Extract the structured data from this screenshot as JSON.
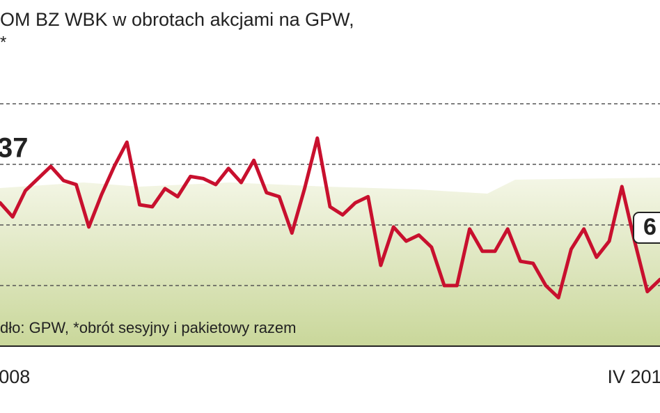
{
  "chart_data": {
    "type": "line",
    "title": "OM BZ WBK w obrotach akcjami na GPW,",
    "subtitle": "*",
    "source": "dło: GPW, *obrót sesyjny i pakietowy razem",
    "annotations": [
      "37",
      "6"
    ],
    "categories": [
      null,
      "008",
      null,
      null,
      null,
      null,
      null,
      null,
      null,
      null,
      null,
      null,
      null,
      null,
      null,
      null,
      null,
      null,
      null,
      null,
      null,
      null,
      null,
      null,
      null,
      null,
      null,
      null,
      null,
      null,
      null,
      null,
      null,
      null,
      null,
      null,
      null,
      null,
      null,
      null,
      null,
      null,
      null,
      null,
      null,
      null,
      null,
      null,
      null,
      null,
      "IV 201",
      null,
      null
    ],
    "series": [
      {
        "color": "#c8102e",
        "values": [
          7.1,
          6.4,
          7.7,
          8.3,
          8.9,
          8.2,
          8.0,
          5.9,
          7.5,
          8.9,
          10.1,
          7.0,
          6.9,
          7.8,
          7.4,
          8.4,
          8.3,
          8.0,
          8.8,
          8.1,
          9.2,
          7.6,
          7.4,
          5.6,
          7.8,
          10.3,
          6.9,
          6.5,
          7.1,
          7.4,
          4.0,
          5.9,
          5.2,
          5.5,
          4.9,
          3.0,
          3.0,
          5.8,
          4.7,
          4.7,
          5.8,
          4.2,
          4.1,
          3.0,
          2.4,
          4.8,
          5.8,
          4.4,
          5.2,
          7.9,
          5.2,
          2.7,
          3.3
        ]
      }
    ],
    "ylim": [
      0,
      14
    ],
    "yticks": [
      3,
      6,
      9,
      12
    ],
    "grid": true
  }
}
